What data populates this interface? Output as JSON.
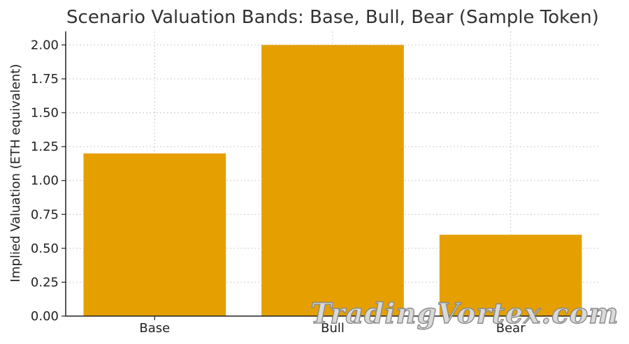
{
  "chart_data": {
    "type": "bar",
    "title": "Scenario Valuation Bands: Base, Bull, Bear (Sample Token)",
    "xlabel": "",
    "ylabel": "Implied Valuation (ETH equivalent)",
    "categories": [
      "Base",
      "Bull",
      "Bear"
    ],
    "values": [
      1.2,
      2.0,
      0.6
    ],
    "ylim": [
      0,
      2.1
    ],
    "yticks": [
      "0.00",
      "0.25",
      "0.50",
      "0.75",
      "1.00",
      "1.25",
      "1.50",
      "1.75",
      "2.00"
    ],
    "grid": true,
    "colors": {
      "bar": "#E5A000"
    }
  },
  "watermark": "TradingVortex.com"
}
